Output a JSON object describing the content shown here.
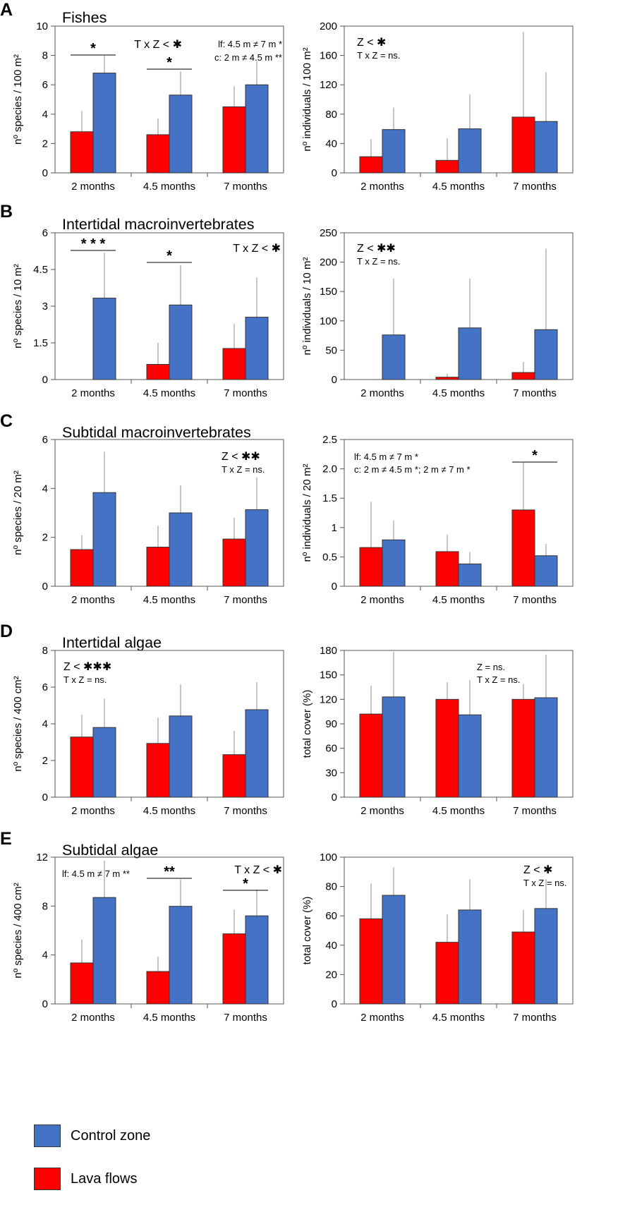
{
  "legend": {
    "control_label": "Control zone",
    "lava_label": "Lava flows",
    "control_color": "#4472C4",
    "lava_color": "#FF0000"
  },
  "panels": [
    {
      "letter": "A",
      "title": "Fishes"
    },
    {
      "letter": "B",
      "title": "Intertidal macroinvertebrates"
    },
    {
      "letter": "C",
      "title": "Subtidal macroinvertebrates"
    },
    {
      "letter": "D",
      "title": "Intertidal algae"
    },
    {
      "letter": "E",
      "title": "Subtidal algae"
    }
  ],
  "chart_data": [
    {
      "id": "A-left",
      "panel": "A",
      "type": "bar",
      "categories": [
        "2 months",
        "4.5 months",
        "7 months"
      ],
      "ylabel": "nº species / 100 m²",
      "ylim": [
        0,
        10
      ],
      "yticks": [
        "0",
        "2",
        "4",
        "6",
        "8",
        "10"
      ],
      "series": [
        {
          "name": "Lava flows",
          "values": [
            2.8,
            2.6,
            4.5
          ],
          "errors": [
            1.4,
            1.1,
            1.4
          ]
        },
        {
          "name": "Control zone",
          "values": [
            6.8,
            5.3,
            6.0
          ],
          "errors": [
            1.2,
            1.6,
            1.6
          ]
        }
      ],
      "significance": [
        {
          "category": 0,
          "text": "*"
        },
        {
          "category": 1,
          "text": "*"
        }
      ],
      "annotations": [
        "T x Z < ✱",
        "lf: 4.5 m ≠ 7 m *",
        "c: 2 m ≠ 4.5 m **"
      ]
    },
    {
      "id": "A-right",
      "panel": "A",
      "type": "bar",
      "categories": [
        "2 months",
        "4.5 months",
        "7 months"
      ],
      "ylabel": "nº individuals / 100 m²",
      "ylim": [
        0,
        200
      ],
      "yticks": [
        "0",
        "40",
        "80",
        "120",
        "160",
        "200"
      ],
      "series": [
        {
          "name": "Lava flows",
          "values": [
            22,
            17,
            76
          ],
          "errors": [
            24,
            30,
            116
          ]
        },
        {
          "name": "Control zone",
          "values": [
            59,
            60,
            70
          ],
          "errors": [
            30,
            47,
            67
          ]
        }
      ],
      "significance": [],
      "annotations": [
        "Z < ✱",
        "T x Z = ns."
      ]
    },
    {
      "id": "B-left",
      "panel": "B",
      "type": "bar",
      "categories": [
        "2 months",
        "4.5 months",
        "7 months"
      ],
      "ylabel": "nº species / 10 m²",
      "ylim": [
        0,
        6
      ],
      "yticks": [
        "0",
        "1.5",
        "3",
        "4.5",
        "6"
      ],
      "series": [
        {
          "name": "Lava flows",
          "values": [
            0,
            0.62,
            1.27
          ],
          "errors": [
            0,
            0.88,
            1.0
          ]
        },
        {
          "name": "Control zone",
          "values": [
            3.33,
            3.05,
            2.55
          ],
          "errors": [
            1.85,
            1.62,
            1.62
          ]
        }
      ],
      "significance": [
        {
          "category": 0,
          "text": "* * *"
        },
        {
          "category": 1,
          "text": "*"
        }
      ],
      "annotations": [
        "T x Z < ✱"
      ]
    },
    {
      "id": "B-right",
      "panel": "B",
      "type": "bar",
      "categories": [
        "2 months",
        "4.5 months",
        "7 months"
      ],
      "ylabel": "nº individuals / 10 m²",
      "ylim": [
        0,
        250
      ],
      "yticks": [
        "0",
        "50",
        "100",
        "150",
        "200",
        "250"
      ],
      "series": [
        {
          "name": "Lava flows",
          "values": [
            0,
            4,
            12
          ],
          "errors": [
            0,
            6,
            18
          ]
        },
        {
          "name": "Control zone",
          "values": [
            76,
            88,
            85
          ],
          "errors": [
            96,
            84,
            138
          ]
        }
      ],
      "significance": [],
      "annotations": [
        "Z < ✱✱",
        "T x Z = ns."
      ]
    },
    {
      "id": "C-left",
      "panel": "C",
      "type": "bar",
      "categories": [
        "2 months",
        "4.5 months",
        "7 months"
      ],
      "ylabel": "nº species / 20 m²",
      "ylim": [
        0,
        6
      ],
      "yticks": [
        "0",
        "2",
        "4",
        "6"
      ],
      "series": [
        {
          "name": "Lava flows",
          "values": [
            1.5,
            1.6,
            1.93
          ],
          "errors": [
            0.58,
            0.87,
            0.87
          ]
        },
        {
          "name": "Control zone",
          "values": [
            3.83,
            3.0,
            3.13
          ],
          "errors": [
            1.67,
            1.13,
            1.32
          ]
        }
      ],
      "significance": [],
      "annotations": [
        "Z < ✱✱",
        "T x Z = ns."
      ]
    },
    {
      "id": "C-right",
      "panel": "C",
      "type": "bar",
      "categories": [
        "2 months",
        "4.5 months",
        "7 months"
      ],
      "ylabel": "nº individuals / 20 m²",
      "ylim": [
        0,
        2.5
      ],
      "yticks": [
        "0",
        "0.5",
        "1",
        "1.5",
        "2.0",
        "2.5"
      ],
      "series": [
        {
          "name": "Lava flows",
          "values": [
            0.66,
            0.59,
            1.3
          ],
          "errors": [
            0.78,
            0.29,
            0.82
          ]
        },
        {
          "name": "Control zone",
          "values": [
            0.79,
            0.38,
            0.52
          ],
          "errors": [
            0.33,
            0.2,
            0.2
          ]
        }
      ],
      "significance": [
        {
          "category": 2,
          "text": "*"
        }
      ],
      "annotations": [
        "lf: 4.5 m ≠ 7 m *",
        "c: 2 m ≠ 4.5 m *; 2 m ≠ 7 m *"
      ]
    },
    {
      "id": "D-left",
      "panel": "D",
      "type": "bar",
      "categories": [
        "2 months",
        "4.5 months",
        "7 months"
      ],
      "ylabel": "nº species / 400 cm²",
      "ylim": [
        0,
        8
      ],
      "yticks": [
        "0",
        "2",
        "4",
        "6",
        "8"
      ],
      "series": [
        {
          "name": "Lava flows",
          "values": [
            3.28,
            2.93,
            2.32
          ],
          "errors": [
            1.22,
            1.4,
            1.28
          ]
        },
        {
          "name": "Control zone",
          "values": [
            3.8,
            4.43,
            4.77
          ],
          "errors": [
            1.57,
            1.72,
            1.5
          ]
        }
      ],
      "significance": [],
      "annotations": [
        "Z < ✱✱✱",
        "T x Z = ns."
      ]
    },
    {
      "id": "D-right",
      "panel": "D",
      "type": "bar",
      "categories": [
        "2 months",
        "4.5 months",
        "7 months"
      ],
      "ylabel": "total cover (%)",
      "ylim": [
        0,
        180
      ],
      "yticks": [
        "0",
        "30",
        "60",
        "90",
        "120",
        "150",
        "180"
      ],
      "series": [
        {
          "name": "Lava flows",
          "values": [
            102,
            120,
            120
          ],
          "errors": [
            35,
            21,
            19
          ]
        },
        {
          "name": "Control zone",
          "values": [
            123,
            101,
            122
          ],
          "errors": [
            55,
            43,
            53
          ]
        }
      ],
      "significance": [],
      "annotations": [
        "Z = ns.",
        "T x Z = ns."
      ]
    },
    {
      "id": "E-left",
      "panel": "E",
      "type": "bar",
      "categories": [
        "2 months",
        "4.5 months",
        "7 months"
      ],
      "ylabel": "nº species / 400 cm²",
      "ylim": [
        0,
        12
      ],
      "yticks": [
        "0",
        "4",
        "8",
        "12"
      ],
      "series": [
        {
          "name": "Lava flows",
          "values": [
            3.35,
            2.65,
            5.73
          ],
          "errors": [
            1.92,
            1.2,
            1.98
          ]
        },
        {
          "name": "Control zone",
          "values": [
            8.7,
            7.98,
            7.2
          ],
          "errors": [
            3.0,
            2.2,
            2.15
          ]
        }
      ],
      "significance": [
        {
          "category": 1,
          "text": "**"
        },
        {
          "category": 2,
          "text": "*"
        }
      ],
      "annotations": [
        "lf: 4.5 m ≠ 7 m **",
        "T x Z < ✱"
      ]
    },
    {
      "id": "E-right",
      "panel": "E",
      "type": "bar",
      "categories": [
        "2 months",
        "4.5 months",
        "7 months"
      ],
      "ylabel": "total cover (%)",
      "ylim": [
        0,
        100
      ],
      "yticks": [
        "0",
        "20",
        "40",
        "60",
        "80",
        "100"
      ],
      "series": [
        {
          "name": "Lava flows",
          "values": [
            58,
            42,
            49
          ],
          "errors": [
            24,
            19,
            15
          ]
        },
        {
          "name": "Control zone",
          "values": [
            74,
            64,
            65
          ],
          "errors": [
            19,
            21,
            20
          ]
        }
      ],
      "significance": [],
      "annotations": [
        "Z < ✱",
        "T x Z = ns."
      ]
    }
  ]
}
